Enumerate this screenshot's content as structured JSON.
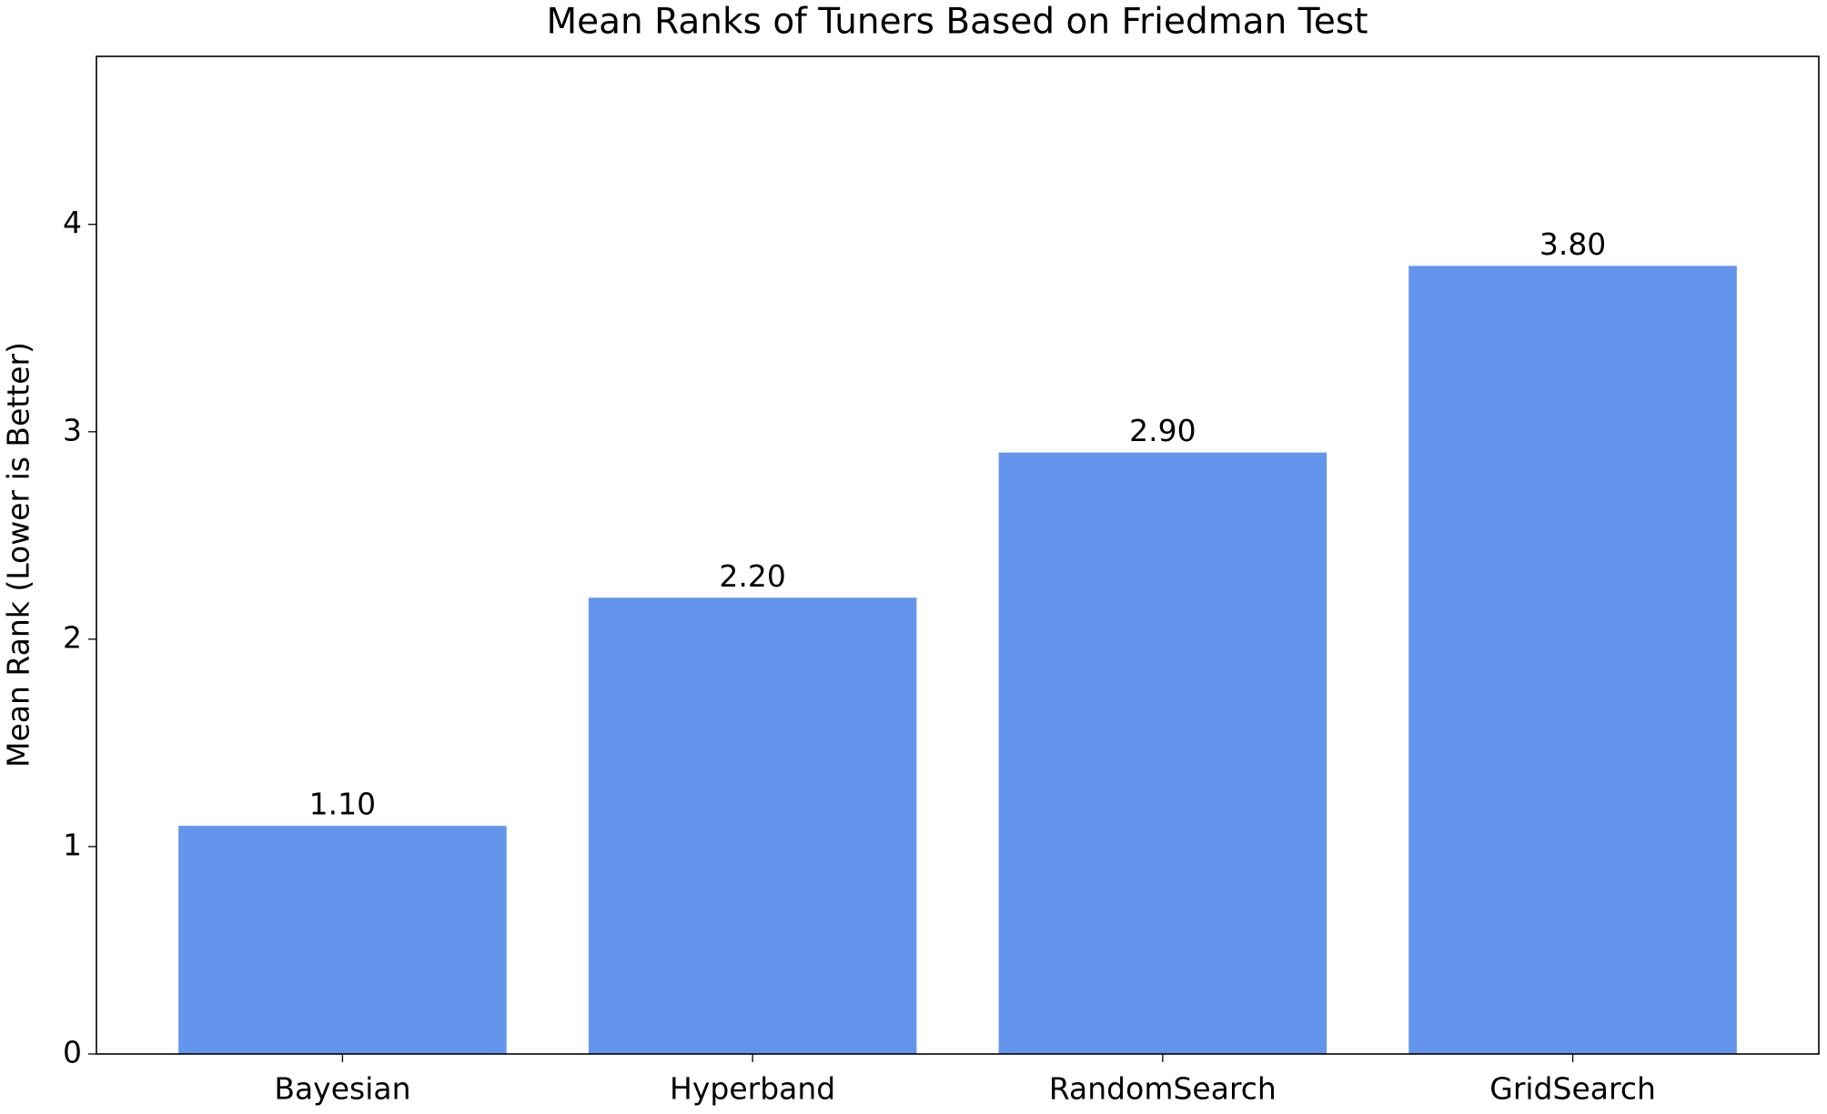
{
  "chart_data": {
    "type": "bar",
    "title": "Mean Ranks of Tuners Based on Friedman Test",
    "y_label": "Mean Rank (Lower is Better)",
    "categories": [
      "Bayesian",
      "Hyperband",
      "RandomSearch",
      "GridSearch"
    ],
    "values": [
      1.1,
      2.2,
      2.9,
      3.8
    ],
    "value_labels": [
      "1.10",
      "2.20",
      "2.90",
      "3.80"
    ],
    "color": "#6495ed",
    "ylim": [
      0,
      4.81
    ],
    "yticks": [
      0,
      1,
      2,
      3,
      4
    ],
    "grid": false
  }
}
